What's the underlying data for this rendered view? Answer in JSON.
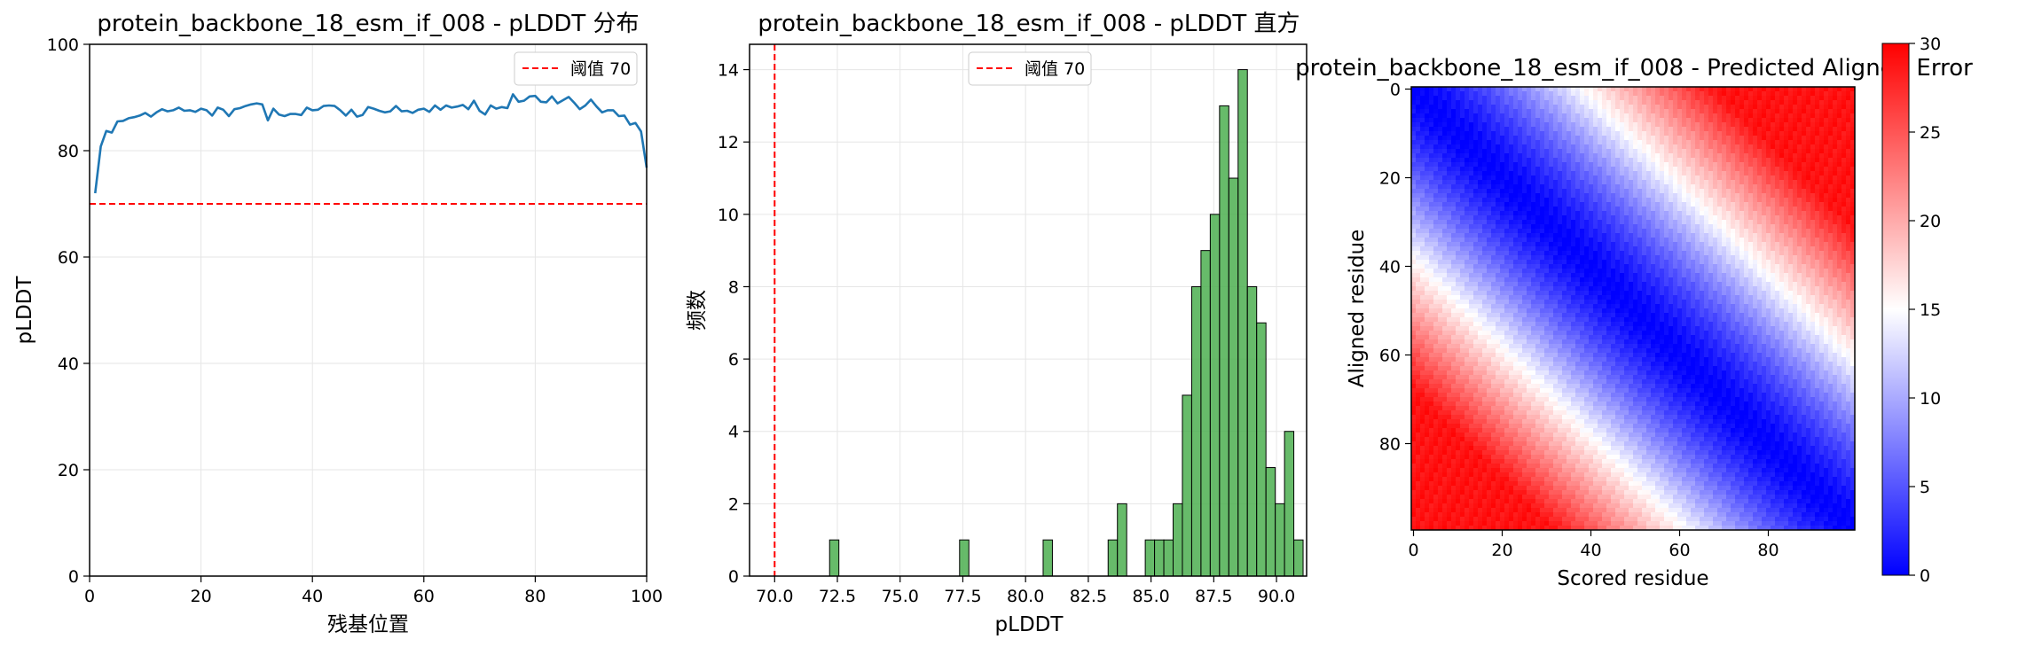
{
  "chart_data": [
    {
      "type": "line",
      "title": "protein_backbone_18_esm_if_008 - pLDDT 分布",
      "xlabel": "残基位置",
      "ylabel": "pLDDT",
      "xlim": [
        0,
        100
      ],
      "ylim": [
        0,
        100
      ],
      "xticks": [
        0,
        20,
        40,
        60,
        80,
        100
      ],
      "yticks": [
        0,
        20,
        40,
        60,
        80,
        100
      ],
      "grid": true,
      "legend": "top-right",
      "series": [
        {
          "color": "#1f77b4",
          "x": [
            1,
            2,
            3,
            4,
            5,
            6,
            7,
            8,
            9,
            10,
            11,
            12,
            13,
            14,
            15,
            16,
            17,
            18,
            19,
            20,
            21,
            22,
            23,
            24,
            25,
            26,
            27,
            28,
            29,
            30,
            31,
            32,
            33,
            34,
            35,
            36,
            37,
            38,
            39,
            40,
            41,
            42,
            43,
            44,
            45,
            46,
            47,
            48,
            49,
            50,
            51,
            52,
            53,
            54,
            55,
            56,
            57,
            58,
            59,
            60,
            61,
            62,
            63,
            64,
            65,
            66,
            67,
            68,
            69,
            70,
            71,
            72,
            73,
            74,
            75,
            76,
            77,
            78,
            79,
            80,
            81,
            82,
            83,
            84,
            85,
            86,
            87,
            88,
            89,
            90,
            91,
            92,
            93,
            94,
            95,
            96,
            97,
            98,
            99,
            100
          ],
          "values": [
            72.0,
            80.8,
            83.7,
            83.4,
            85.5,
            85.6,
            86.1,
            86.3,
            86.6,
            87.1,
            86.4,
            87.2,
            87.8,
            87.4,
            87.6,
            88.1,
            87.5,
            87.6,
            87.3,
            87.9,
            87.6,
            86.6,
            88.1,
            87.7,
            86.5,
            87.8,
            88.0,
            88.4,
            88.7,
            88.9,
            88.7,
            85.7,
            87.9,
            86.8,
            86.5,
            86.9,
            86.9,
            86.7,
            88.1,
            87.6,
            87.7,
            88.4,
            88.5,
            88.4,
            87.6,
            86.6,
            87.7,
            86.4,
            86.7,
            88.2,
            87.9,
            87.5,
            87.2,
            87.4,
            88.4,
            87.4,
            87.5,
            87.1,
            87.7,
            87.9,
            87.3,
            88.5,
            87.7,
            88.5,
            88.1,
            88.3,
            88.6,
            87.8,
            89.4,
            87.5,
            86.8,
            88.5,
            87.9,
            88.2,
            88.0,
            90.6,
            89.2,
            89.4,
            90.2,
            90.3,
            89.2,
            89.1,
            90.2,
            88.9,
            89.5,
            90.1,
            89.0,
            87.8,
            88.5,
            89.6,
            88.3,
            87.2,
            87.6,
            87.6,
            86.5,
            86.6,
            84.9,
            85.2,
            83.6,
            76.8
          ]
        }
      ],
      "threshold": {
        "value": 70,
        "label": "阈值 70",
        "color": "#ff0000"
      }
    },
    {
      "type": "bar",
      "title": "protein_backbone_18_esm_if_008 - pLDDT 直方",
      "xlabel": "pLDDT",
      "ylabel": "频数",
      "xlim": [
        69.0,
        91.2
      ],
      "ylim": [
        0,
        14.7
      ],
      "xticks": [
        "70.0",
        "72.5",
        "75.0",
        "77.5",
        "80.0",
        "82.5",
        "85.0",
        "87.5",
        "90.0"
      ],
      "yticks": [
        0,
        2,
        4,
        6,
        8,
        10,
        12,
        14
      ],
      "grid": true,
      "legend": "top-center",
      "bar_color": "#4caf50",
      "bin_width": 0.37,
      "bins": [
        {
          "x": 72.19,
          "count": 1
        },
        {
          "x": 77.37,
          "count": 1
        },
        {
          "x": 80.7,
          "count": 1
        },
        {
          "x": 83.29,
          "count": 1
        },
        {
          "x": 83.66,
          "count": 2
        },
        {
          "x": 84.77,
          "count": 1
        },
        {
          "x": 85.14,
          "count": 1
        },
        {
          "x": 85.51,
          "count": 1
        },
        {
          "x": 85.88,
          "count": 2
        },
        {
          "x": 86.25,
          "count": 5
        },
        {
          "x": 86.62,
          "count": 8
        },
        {
          "x": 86.99,
          "count": 9
        },
        {
          "x": 87.36,
          "count": 10
        },
        {
          "x": 87.73,
          "count": 13
        },
        {
          "x": 88.1,
          "count": 11
        },
        {
          "x": 88.47,
          "count": 14
        },
        {
          "x": 88.84,
          "count": 8
        },
        {
          "x": 89.21,
          "count": 7
        },
        {
          "x": 89.58,
          "count": 3
        },
        {
          "x": 89.95,
          "count": 2
        },
        {
          "x": 90.32,
          "count": 4
        },
        {
          "x": 90.69,
          "count": 1
        }
      ],
      "threshold": {
        "value": 70,
        "label": "阈值 70",
        "color": "#ff0000"
      }
    },
    {
      "type": "heatmap",
      "title": "protein_backbone_18_esm_if_008 - Predicted Aligned Error",
      "xlabel": "Scored residue",
      "ylabel": "Aligned residue",
      "size": 100,
      "xticks": [
        0,
        20,
        40,
        60,
        80
      ],
      "yticks": [
        0,
        20,
        40,
        60,
        80
      ],
      "colormap": "bwr",
      "vmin": 0,
      "vmax": 30,
      "colorbar_ticks": [
        0,
        5,
        10,
        15,
        20,
        25,
        30
      ],
      "error_model": {
        "diagonal": 0,
        "band_half_width": 38,
        "band_max": 15,
        "outside_max": 29
      }
    }
  ]
}
